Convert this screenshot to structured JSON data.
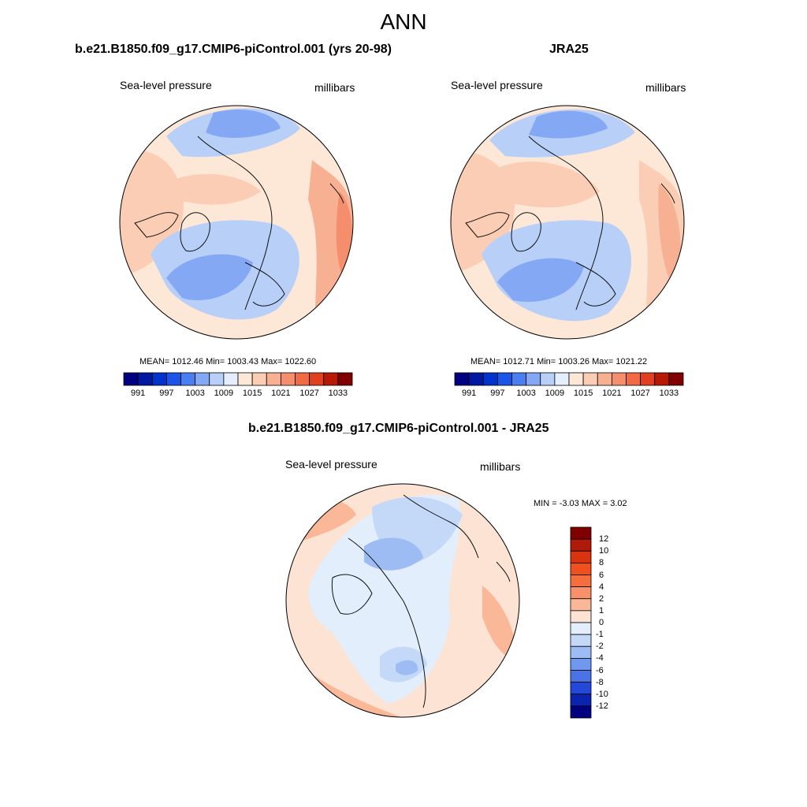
{
  "title": "ANN",
  "panels": [
    {
      "id": "model",
      "title": "b.e21.B1850.f09_g17.CMIP6-piControl.001 (yrs 20-98)",
      "left_label": "Sea-level pressure",
      "right_label": "millibars",
      "stats": "MEAN= 1012.46  Min= 1003.43  Max= 1022.60",
      "colorbar": {
        "ticks": [
          "991",
          "997",
          "1003",
          "1009",
          "1015",
          "1021",
          "1027",
          "1033"
        ],
        "colors": [
          "#000080",
          "#0019a0",
          "#0033cc",
          "#1a55e8",
          "#4a7ff2",
          "#84a8f4",
          "#b8cff8",
          "#e4eefc",
          "#fde8d8",
          "#fbcdb4",
          "#f8b092",
          "#f58e6c",
          "#f06a44",
          "#e0401e",
          "#b81806",
          "#800000"
        ]
      }
    },
    {
      "id": "obs",
      "title": "JRA25",
      "left_label": "Sea-level pressure",
      "right_label": "millibars",
      "stats": "MEAN= 1012.71  Min= 1003.26  Max= 1021.22",
      "colorbar": {
        "ticks": [
          "991",
          "997",
          "1003",
          "1009",
          "1015",
          "1021",
          "1027",
          "1033"
        ],
        "colors": [
          "#000080",
          "#0019a0",
          "#0033cc",
          "#1a55e8",
          "#4a7ff2",
          "#84a8f4",
          "#b8cff8",
          "#e4eefc",
          "#fde8d8",
          "#fbcdb4",
          "#f8b092",
          "#f58e6c",
          "#f06a44",
          "#e0401e",
          "#b81806",
          "#800000"
        ]
      }
    },
    {
      "id": "diff",
      "title": "b.e21.B1850.f09_g17.CMIP6-piControl.001 - JRA25",
      "left_label": "Sea-level pressure",
      "right_label": "millibars",
      "stats": "MIN =  -3.03 MAX =   3.02",
      "colorbar": {
        "ticks": [
          "12",
          "10",
          "8",
          "6",
          "4",
          "2",
          "1",
          "0",
          "-1",
          "-2",
          "-4",
          "-6",
          "-8",
          "-10",
          "-12"
        ],
        "colors": [
          "#800000",
          "#b01a08",
          "#d83410",
          "#f0501e",
          "#f56e3e",
          "#f8906c",
          "#fbb898",
          "#fde3d3",
          "#e2eefc",
          "#c4d8f8",
          "#9ebcf4",
          "#7098ee",
          "#4a74e6",
          "#2448d8",
          "#0a24b0",
          "#000080"
        ]
      }
    }
  ],
  "colors": {
    "high_1": "#fde8d8",
    "high_2": "#fbcdb4",
    "high_3": "#f8b092",
    "high_4": "#f58e6c",
    "low_1": "#e4eefc",
    "low_2": "#b8cff8",
    "low_3": "#84a8f4",
    "coast": "#111111"
  }
}
